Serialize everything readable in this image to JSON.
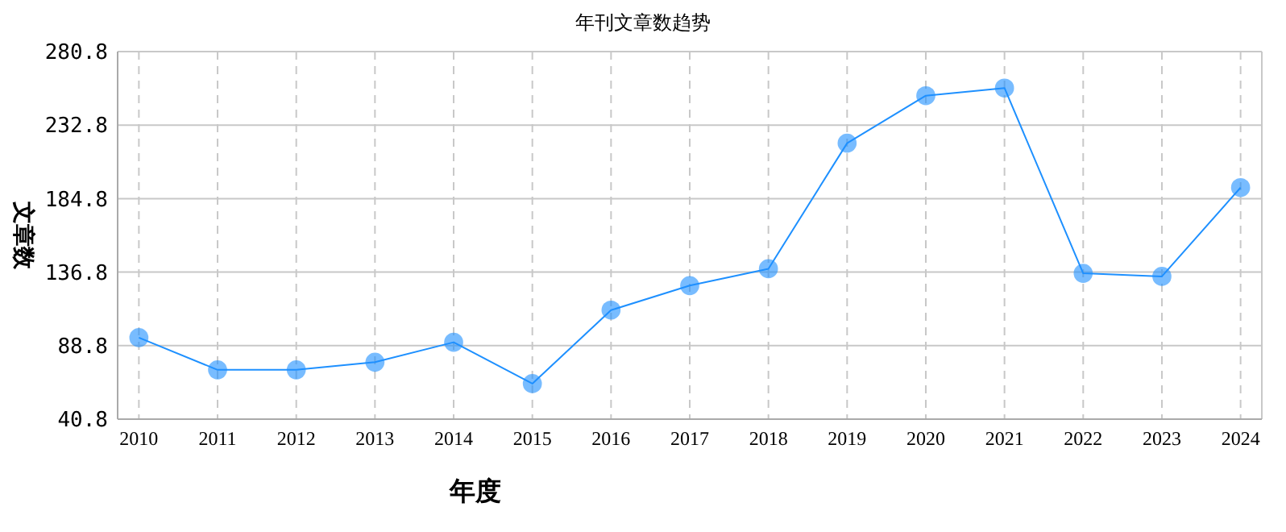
{
  "chart_data": {
    "type": "line",
    "title": "年刊文章数趋势",
    "xlabel": "年度",
    "ylabel": "文章数",
    "categories": [
      "2010",
      "2011",
      "2012",
      "2013",
      "2014",
      "2015",
      "2016",
      "2017",
      "2018",
      "2019",
      "2020",
      "2021",
      "2022",
      "2023",
      "2024"
    ],
    "series": [
      {
        "color": "#1e90ff",
        "values": [
          94,
          73,
          73,
          78,
          91,
          64,
          112,
          128,
          139,
          221,
          252,
          257,
          136,
          134,
          192
        ]
      }
    ],
    "ylim": [
      40.8,
      280.8
    ],
    "yticks": [
      40.8,
      88.8,
      136.8,
      184.8,
      232.8,
      280.8
    ],
    "grid": true,
    "marker": "circle",
    "line_style": "solid"
  }
}
